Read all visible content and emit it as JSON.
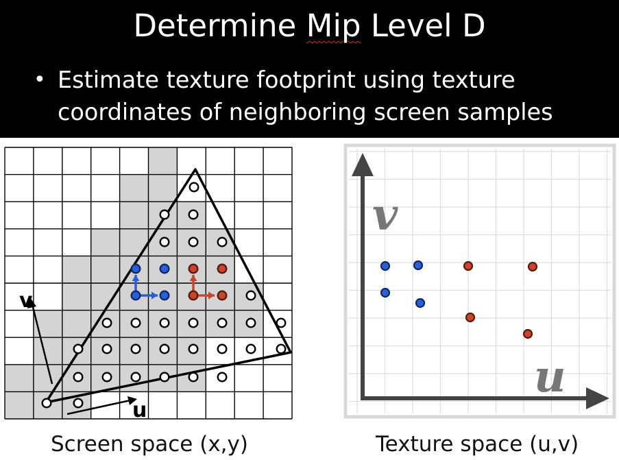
{
  "slide": {
    "title_word1": "Determine ",
    "title_word2": "Mip",
    "title_word3": " Level D",
    "bullet": "Estimate texture footprint using texture coordinates of neighboring screen samples"
  },
  "screen_panel": {
    "caption": "Screen space (x,y)",
    "axis_u_label": "u",
    "axis_v_label": "v"
  },
  "texture_panel": {
    "caption": "Texture space (u,v)",
    "axis_u_label": "u",
    "axis_v_label": "v"
  },
  "colors": {
    "blue": "#2a5fd6",
    "red": "#c8462b",
    "covered": "#d4d4d4",
    "grid": "#000000",
    "texture_axis": "#444444",
    "texture_letter": "#777777"
  }
}
